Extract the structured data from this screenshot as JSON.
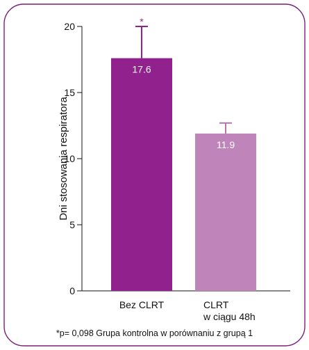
{
  "chart_data": {
    "type": "bar",
    "categories": [
      [
        "Bez CLRT"
      ],
      [
        "CLRT",
        "w ciągu 48h"
      ]
    ],
    "values": [
      17.6,
      11.9
    ],
    "value_labels": [
      "17.6",
      "11.9"
    ],
    "errors": [
      2.4,
      0.8
    ],
    "significance_markers": [
      "*",
      ""
    ],
    "ylabel": "Dni stosowania respiratora",
    "ylim": [
      0,
      20
    ],
    "yticks": [
      0,
      5,
      10,
      15,
      20
    ],
    "grid": false,
    "bar_colors": [
      "#91218c",
      "#bf85bb"
    ],
    "error_bar_colors": [
      "#91218c",
      "#b277ae"
    ],
    "border_color": "#7a1f7a",
    "footnote": "*p= 0,098 Grupa kontrolna w porównaniu z grupą 1"
  }
}
